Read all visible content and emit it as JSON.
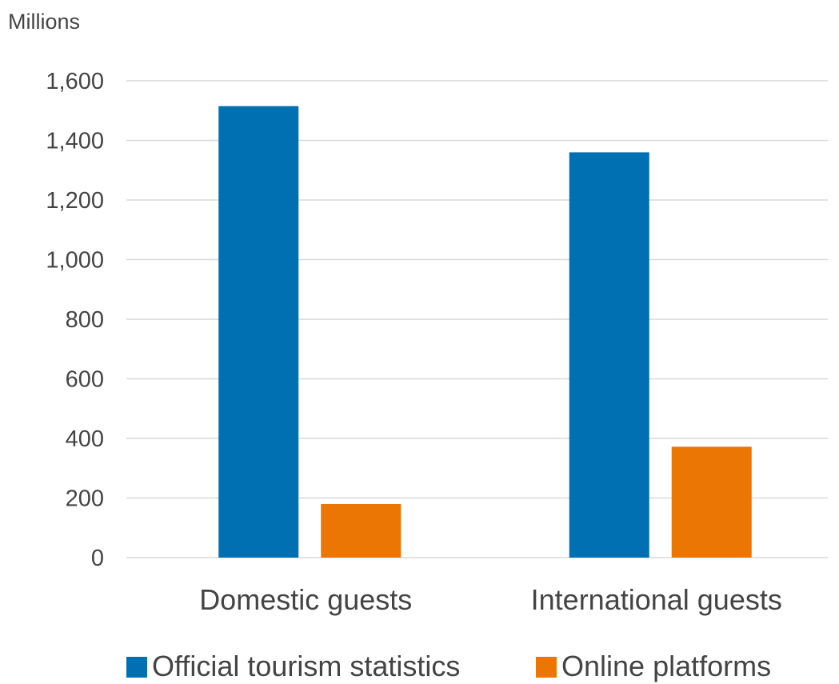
{
  "chart_data": {
    "type": "bar",
    "title": "",
    "xlabel": "",
    "ylabel": "",
    "unit_label": "Millions",
    "categories": [
      "Domestic guests",
      "International guests"
    ],
    "series": [
      {
        "name": "Official tourism statistics",
        "values": [
          1515,
          1360
        ],
        "color": "#0070b2"
      },
      {
        "name": "Online platforms",
        "values": [
          180,
          372
        ],
        "color": "#ec7603"
      }
    ],
    "ylim": [
      0,
      1600
    ],
    "yticks": [
      0,
      200,
      400,
      600,
      800,
      1000,
      1200,
      1400,
      1600
    ],
    "ytick_labels": [
      "0",
      "200",
      "400",
      "600",
      "800",
      "1,000",
      "1,200",
      "1,400",
      "1,600"
    ],
    "grid": true,
    "gridline_color": "#d9d9d9",
    "legend_position": "bottom"
  }
}
